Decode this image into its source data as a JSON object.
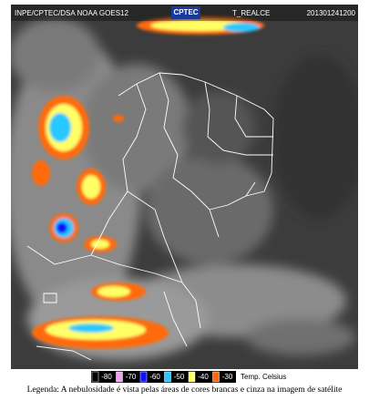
{
  "header": {
    "source": "INPE/CPTEC/DSA NOAA GOES12",
    "logo": "CPTEC",
    "product": "T_REALCE",
    "timestamp": "201301241200"
  },
  "legend": {
    "items": [
      {
        "label": "-80",
        "color": "#000000"
      },
      {
        "label": "-70",
        "color": "#f4a0ee"
      },
      {
        "label": "-60",
        "color": "#1010ff"
      },
      {
        "label": "-50",
        "color": "#28c8ff"
      },
      {
        "label": "-40",
        "color": "#ffff66"
      },
      {
        "label": "-30",
        "color": "#ff6a10"
      }
    ],
    "unit": "Temp. Celsius"
  },
  "caption": "Legenda: A nebulosidade é vista pelas áreas de cores brancas e cinza na imagem de satélite"
}
